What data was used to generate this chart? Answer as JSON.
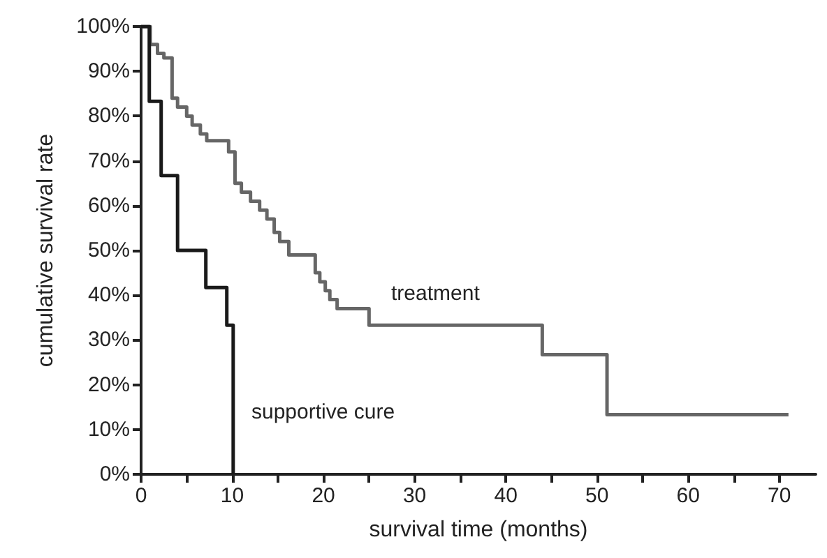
{
  "chart_data": {
    "type": "step",
    "xlabel": "survival time (months)",
    "ylabel": "cumulative survival rate",
    "series": [
      {
        "color": "#666666",
        "x": [
          0,
          1,
          1.8,
          2.5,
          3.4,
          4,
          5,
          5.6,
          6.5,
          7.2,
          9.6,
          10.3,
          11,
          12,
          13,
          13.8,
          14.6,
          15.2,
          16.2,
          19.1,
          19.6,
          20.2,
          20.7,
          21.5,
          25,
          44,
          51.1,
          71
        ],
        "values": [
          100,
          96,
          94,
          93,
          84,
          82,
          80,
          78,
          76,
          74.5,
          72,
          65,
          63,
          61,
          59,
          57,
          54,
          52,
          49,
          45,
          43,
          41,
          39,
          37,
          33.3,
          26.7,
          13.3,
          13.3
        ]
      },
      {
        "color": "#1a1a1a",
        "x": [
          0,
          0.9,
          2.2,
          4,
          7.1,
          9.4,
          10.1
        ],
        "values": [
          100,
          83.3,
          66.7,
          50,
          41.7,
          33.3,
          0
        ]
      }
    ],
    "annotations": [
      "treatment",
      "supportive cure"
    ],
    "xlim": [
      0,
      74
    ],
    "xticks": [
      0,
      {
        "value": 5,
        "label": null
      },
      10,
      {
        "value": 15,
        "label": null
      },
      20,
      {
        "value": 25,
        "label": null
      },
      30,
      {
        "value": 35,
        "label": null
      },
      40,
      {
        "value": 45,
        "label": null
      },
      50,
      {
        "value": 55,
        "label": null
      },
      60,
      {
        "value": 65,
        "label": null
      },
      70
    ],
    "ylim": [
      0,
      100
    ],
    "yticks": [
      {
        "value": 0,
        "label": "0%"
      },
      {
        "value": 10,
        "label": "10%"
      },
      {
        "value": 20,
        "label": "20%"
      },
      {
        "value": 30,
        "label": "30%"
      },
      {
        "value": 40,
        "label": "40%"
      },
      {
        "value": 50,
        "label": "50%"
      },
      {
        "value": 60,
        "label": "60%"
      },
      {
        "value": 70,
        "label": "70%"
      },
      {
        "value": 80,
        "label": "80%"
      },
      {
        "value": 90,
        "label": "90%"
      },
      {
        "value": 100,
        "label": "100%"
      }
    ],
    "grid": false,
    "marker": "none",
    "line_style": "solid"
  }
}
